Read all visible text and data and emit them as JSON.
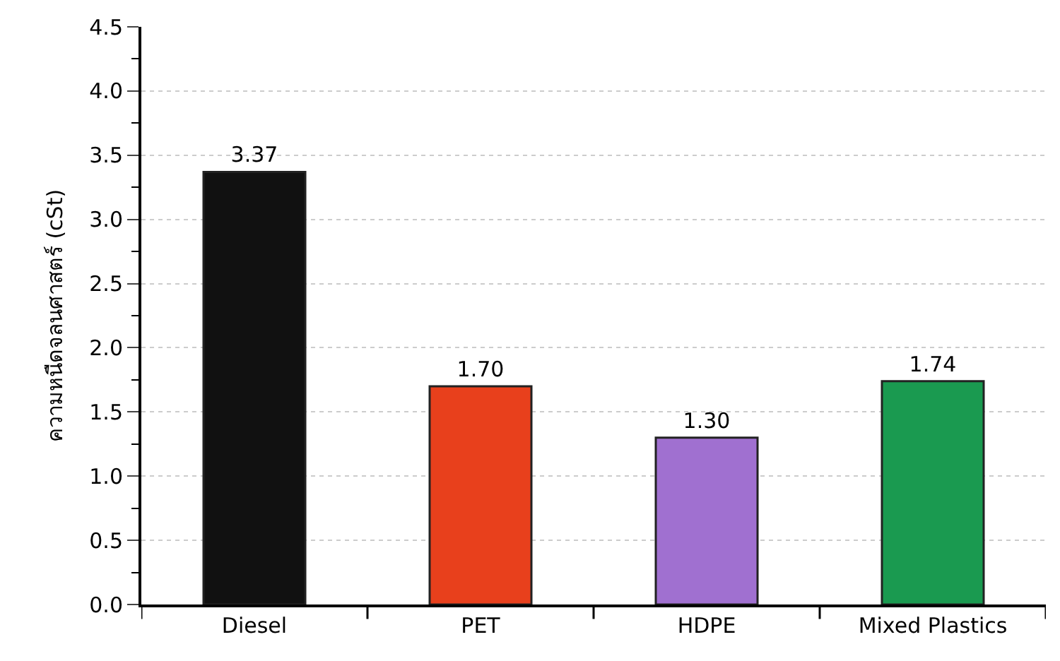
{
  "chart_data": {
    "type": "bar",
    "ylabel": "ความหนืดจลนศาสตร์ (cSt)",
    "categories": [
      "Diesel",
      "PET",
      "HDPE",
      "Mixed Plastics"
    ],
    "values": [
      3.37,
      1.7,
      1.3,
      1.74
    ],
    "colors": [
      "#111111",
      "#e8401c",
      "#a070d0",
      "#1a9a50"
    ],
    "ylim": [
      0,
      4.5
    ],
    "yticks": [
      {
        "value": 0,
        "label": "0.0"
      },
      {
        "value": 0.5,
        "label": "0.5"
      },
      {
        "value": 1,
        "label": "1.0"
      },
      {
        "value": 1.5,
        "label": "1.5"
      },
      {
        "value": 2,
        "label": "2.0"
      },
      {
        "value": 2.5,
        "label": "2.5"
      },
      {
        "value": 3,
        "label": "3.0"
      },
      {
        "value": 3.5,
        "label": "3.5"
      },
      {
        "value": 4,
        "label": "4.0"
      },
      {
        "value": 4.5,
        "label": "4.5"
      }
    ],
    "value_labels": [
      "3.37",
      "1.70",
      "1.30",
      "1.74"
    ],
    "grid": "y"
  }
}
